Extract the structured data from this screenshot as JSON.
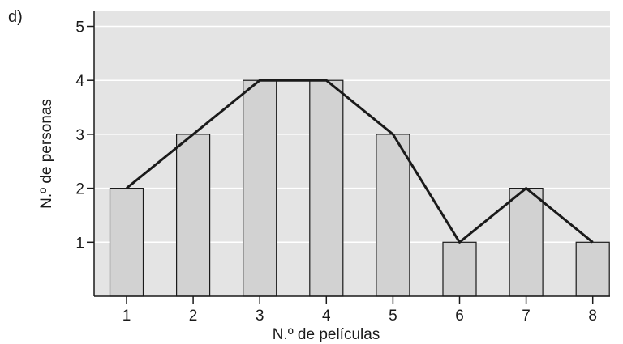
{
  "panel_label": "d)",
  "chart_data": {
    "type": "bar",
    "categories": [
      "1",
      "2",
      "3",
      "4",
      "5",
      "6",
      "7",
      "8"
    ],
    "values": [
      2,
      3,
      4,
      4,
      3,
      1,
      2,
      1
    ],
    "overlay": "line",
    "xlabel": "N.º de películas",
    "ylabel": "N.º de personas",
    "ylim": [
      0,
      5
    ],
    "yticks": [
      "1",
      "2",
      "3",
      "4",
      "5"
    ],
    "grid": true,
    "colors": {
      "background": "#e4e4e4",
      "bar_fill": "#d2d2d2",
      "bar_stroke": "#1a1a1a",
      "line": "#1a1a1a",
      "grid": "#ffffff"
    }
  }
}
